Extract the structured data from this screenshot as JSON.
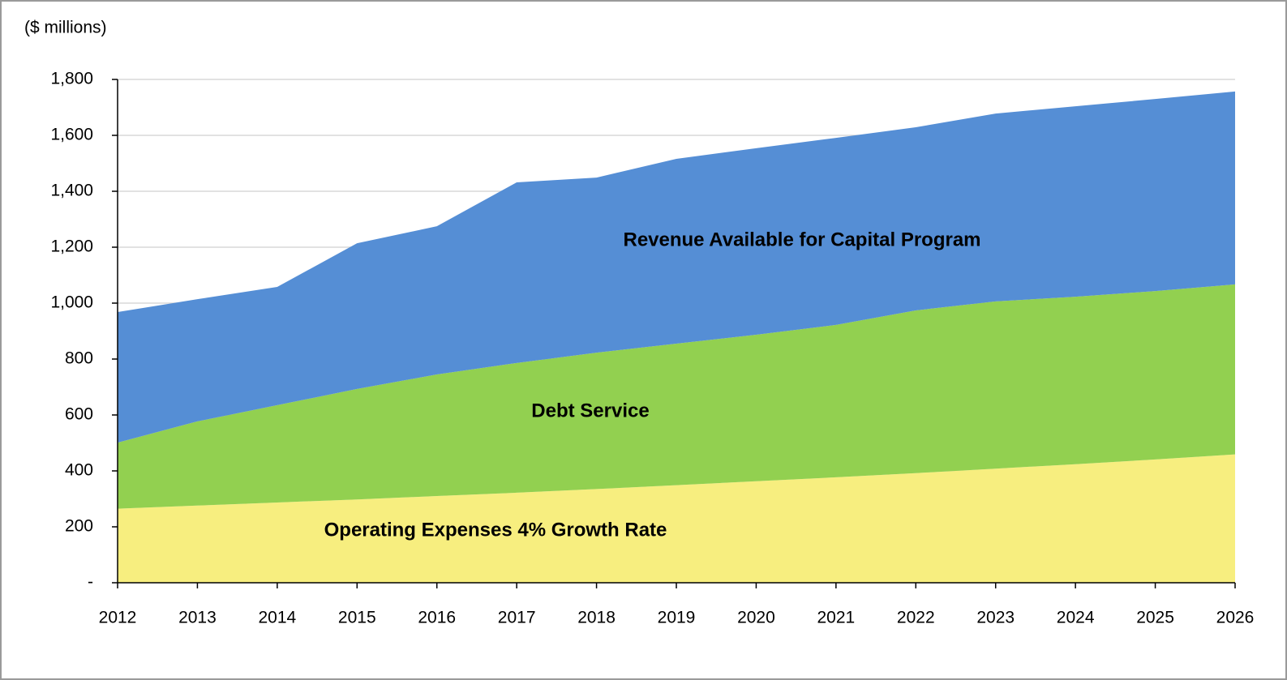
{
  "chart_data": {
    "type": "stacked_area",
    "y_label": "($ millions)",
    "categories": [
      "2012",
      "2013",
      "2014",
      "2015",
      "2016",
      "2017",
      "2018",
      "2019",
      "2020",
      "2021",
      "2022",
      "2023",
      "2024",
      "2025",
      "2026"
    ],
    "series": [
      {
        "name": "Operating Expenses 4% Growth Rate",
        "color": "#f7ee7f",
        "values": [
          265,
          276,
          287,
          298,
          310,
          322,
          335,
          349,
          363,
          377,
          392,
          408,
          424,
          441,
          459
        ]
      },
      {
        "name": "Debt Service",
        "color": "#92d050",
        "values": [
          236,
          301,
          348,
          395,
          435,
          464,
          488,
          506,
          524,
          545,
          582,
          598,
          599,
          602,
          608
        ]
      },
      {
        "name": "Revenue Available for Capital Program",
        "color": "#558ed5",
        "values": [
          467,
          437,
          423,
          521,
          530,
          646,
          626,
          661,
          667,
          669,
          655,
          672,
          681,
          687,
          690
        ]
      }
    ],
    "ylim": [
      0,
      1800
    ],
    "yticks": [
      {
        "value": 0,
        "label": "-"
      },
      200,
      400,
      600,
      800,
      {
        "value": 1000,
        "label": "1,000"
      },
      {
        "value": 1200,
        "label": "1,200"
      },
      {
        "value": 1400,
        "label": "1,400"
      },
      {
        "value": 1600,
        "label": "1,600"
      },
      {
        "value": 1800,
        "label": "1,800"
      }
    ],
    "grid": true
  }
}
